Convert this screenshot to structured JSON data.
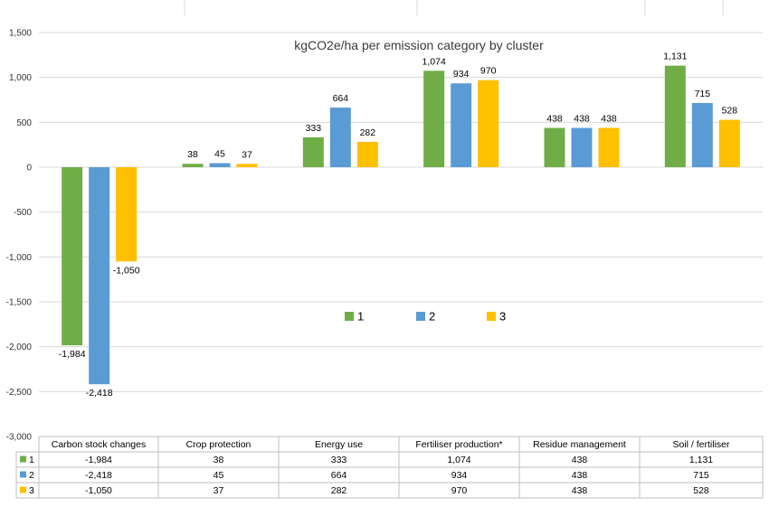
{
  "chart_data": {
    "type": "bar",
    "title": "kgCO2e/ha per emission category by cluster",
    "categories": [
      "Carbon stock changes",
      "Crop protection",
      "Energy use",
      "Fertiliser production*",
      "Residue management",
      "Soil / fertiliser"
    ],
    "series": [
      {
        "name": "1",
        "color": "#70ad47",
        "values": [
          -1984,
          38,
          333,
          1074,
          438,
          1131
        ]
      },
      {
        "name": "2",
        "color": "#5b9bd5",
        "values": [
          -2418,
          45,
          664,
          934,
          438,
          715
        ]
      },
      {
        "name": "3",
        "color": "#ffc000",
        "values": [
          -1050,
          37,
          282,
          970,
          438,
          528
        ]
      }
    ],
    "data_labels": [
      [
        "-1,984",
        "38",
        "333",
        "1,074",
        "438",
        "1,131"
      ],
      [
        "-2,418",
        "45",
        "664",
        "934",
        "438",
        "715"
      ],
      [
        "-1,050",
        "37",
        "282",
        "970",
        "438",
        "528"
      ]
    ],
    "ylim": [
      -3000,
      1500
    ],
    "y_ticks": [
      1500,
      1000,
      500,
      0,
      -500,
      -1000,
      -1500,
      -2000,
      -2500,
      -3000
    ],
    "y_tick_labels": [
      "1,500",
      "1,000",
      "500",
      "0",
      "-500",
      "-1,000",
      "-1,500",
      "-2,000",
      "-2,500",
      "-3,000"
    ],
    "grid": true,
    "legend_position": "center",
    "data_table": true
  }
}
